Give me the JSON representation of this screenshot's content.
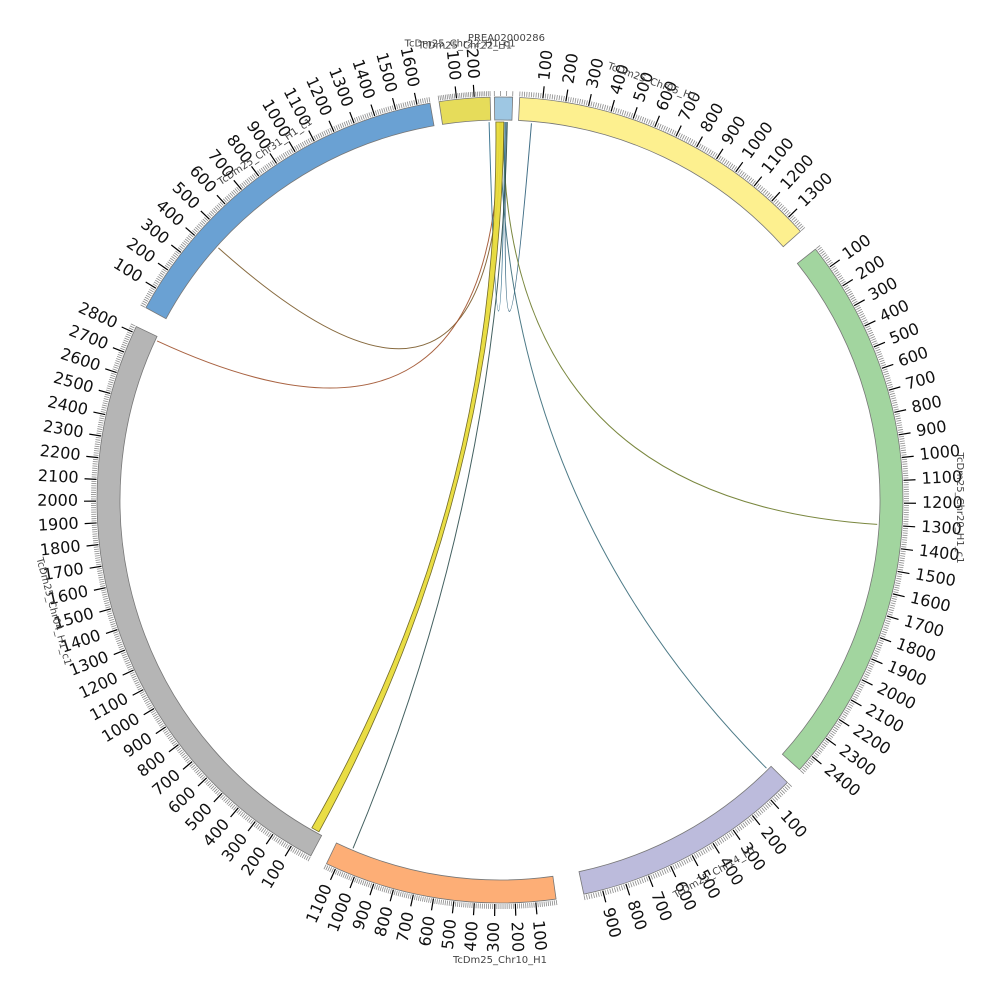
{
  "chromosomes": [
    {
      "id": "tcdm25-chr05-h1",
      "name": "TcDm25_Chr05_H1",
      "length": 1380,
      "color": "#fdf08f",
      "major": [
        100,
        200,
        300,
        400,
        500,
        600,
        700,
        800,
        900,
        1000,
        1100,
        1200,
        1300
      ]
    },
    {
      "id": "tcdm25-chr20-h1-c1",
      "name": "TcDm25_Chr20_H1_c1",
      "length": 2480,
      "color": "#a2d59f",
      "major": [
        100,
        200,
        300,
        400,
        500,
        600,
        700,
        800,
        900,
        1000,
        1100,
        1200,
        1300,
        1400,
        1500,
        1600,
        1700,
        1800,
        1900,
        2000,
        2100,
        2200,
        2300,
        2400
      ]
    },
    {
      "id": "tcdm25-chr14-h1",
      "name": "TcDm25_Chr14_H1",
      "length": 980,
      "color": "#bcbbdc",
      "major": [
        100,
        200,
        300,
        400,
        500,
        600,
        700,
        800,
        900
      ]
    },
    {
      "id": "tcdm25-chr10-h1",
      "name": "TcDm25_Chr10_H1",
      "length": 1150,
      "color": "#fdae76",
      "major": [
        100,
        200,
        300,
        400,
        500,
        600,
        700,
        800,
        900,
        1000,
        1100
      ]
    },
    {
      "id": "tcdm25-chr04-h1-c1",
      "name": "TcDm25_Chr04_H1_c1",
      "length": 2830,
      "color": "#b5b5b5",
      "major": [
        100,
        200,
        300,
        400,
        500,
        600,
        700,
        800,
        900,
        1000,
        1100,
        1200,
        1300,
        1400,
        1500,
        1600,
        1700,
        1800,
        1900,
        2000,
        2100,
        2200,
        2300,
        2400,
        2500,
        2600,
        2700,
        2800
      ]
    },
    {
      "id": "tcdm25-chr31-h1-c1",
      "name": "TcDm25_Chr31_H1_c1",
      "length": 1660,
      "color": "#6aa1d3",
      "major": [
        100,
        200,
        300,
        400,
        500,
        600,
        700,
        800,
        900,
        1000,
        1100,
        1200,
        1300,
        1400,
        1500,
        1600
      ]
    },
    {
      "id": "tcdm25-chr22-h1",
      "name": "TcDm25_Chr22_H1",
      "length": 290,
      "color": "#e6dc5a",
      "major": [
        100,
        200
      ]
    },
    {
      "id": "prea02000286",
      "name": "PREA02000286",
      "length": 30,
      "color": "#9ec7e3",
      "major": []
    }
  ],
  "overlap_label": "TcDm25_Chr22_H1_c1",
  "links": [
    {
      "from": "tcdm25-chr05-h1",
      "from_pos": 60,
      "to": "prea02000286",
      "to_pos": 20,
      "color": "#2e5f7a",
      "kind": "line"
    },
    {
      "from": "tcdm25-chr20-h1-c1",
      "from_pos": 1300,
      "to": "prea02000286",
      "to_pos": 15,
      "color": "#6b7a2a",
      "kind": "line"
    },
    {
      "from": "tcdm25-chr14-h1",
      "from_pos": 20,
      "to": "prea02000286",
      "to_pos": 10,
      "color": "#3a6b7a",
      "kind": "line"
    },
    {
      "from": "tcdm25-chr31-h1-c1",
      "from_pos": 430,
      "to": "prea02000286",
      "to_pos": 12,
      "color": "#7a5a2a",
      "kind": "line"
    },
    {
      "from": "tcdm25-chr04-h1-c1",
      "from_pos": 2810,
      "to": "prea02000286",
      "to_pos": 8,
      "color": "#a0522d",
      "kind": "line"
    },
    {
      "from": "tcdm25-chr22-h1",
      "from_pos": 280,
      "to": "prea02000286",
      "to_pos": 18,
      "color": "#2e6b8a",
      "kind": "line"
    },
    {
      "from": "tcdm25-chr10-h1",
      "from_pos": 1060,
      "to": "prea02000286",
      "to_pos": 22,
      "color": "#2f4f4f",
      "kind": "line"
    },
    {
      "from": "tcdm25-chr04-h1-c1",
      "from_pos": 20,
      "from_end": 60,
      "to": "prea02000286",
      "to_pos": 2,
      "to_end": 16,
      "color": "#e8dc3a",
      "kind": "ribbon"
    }
  ]
}
